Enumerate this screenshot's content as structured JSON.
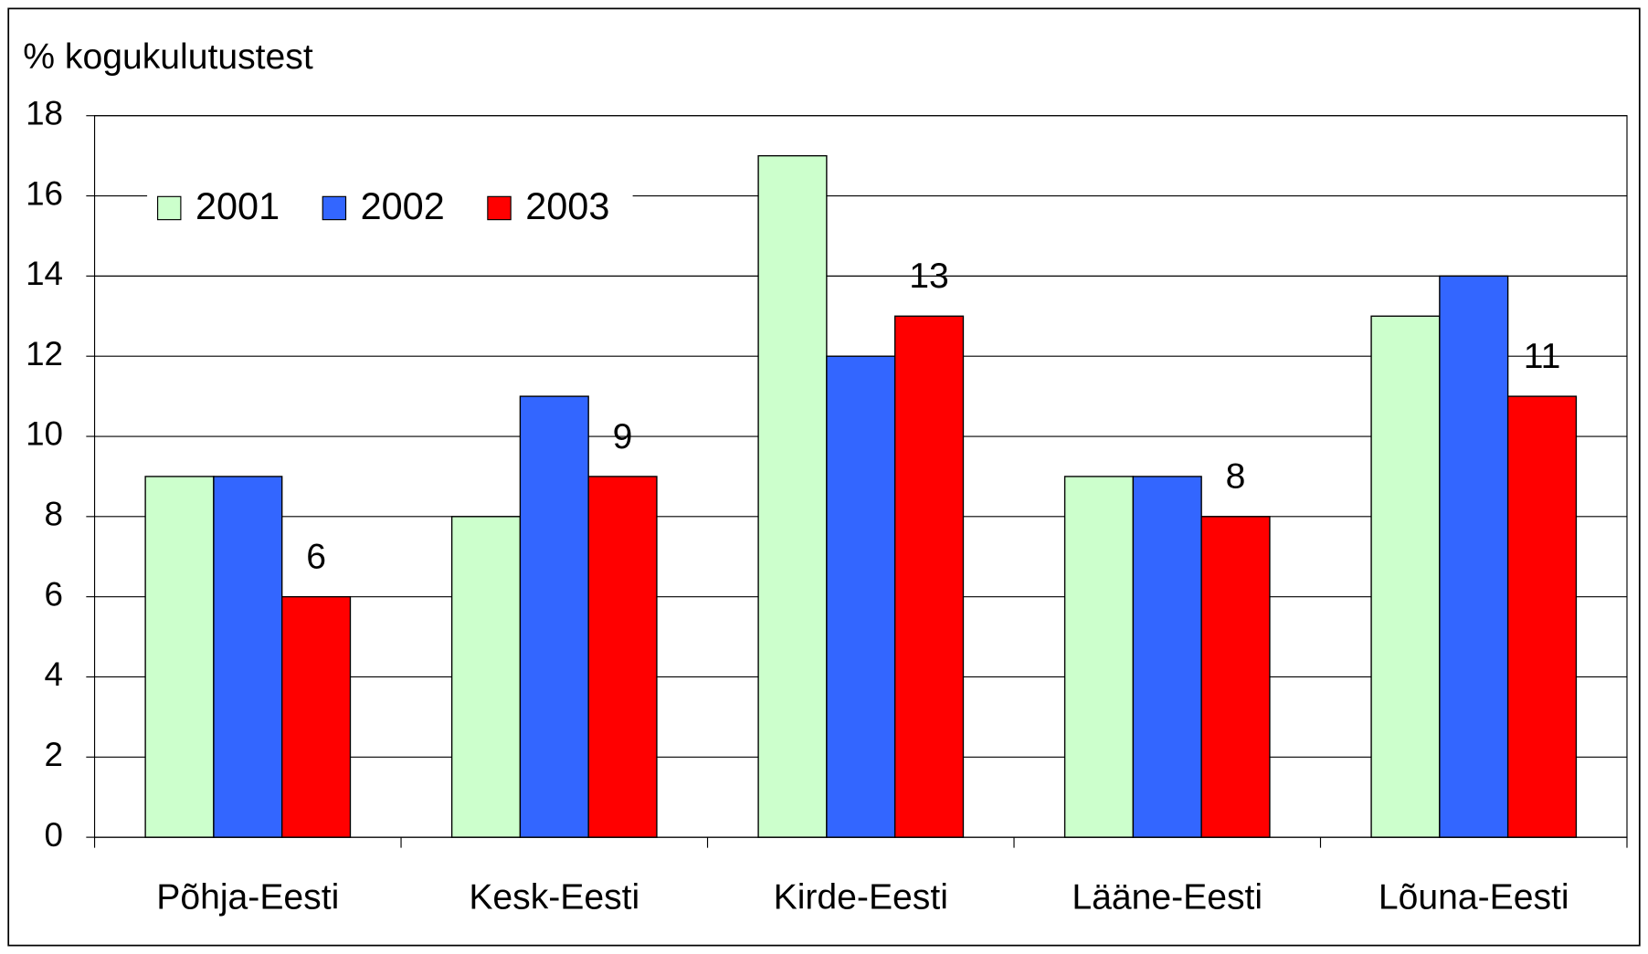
{
  "chart_data": {
    "type": "bar",
    "y_axis_label": "% kogukulutustest",
    "categories": [
      "Põhja-Eesti",
      "Kesk-Eesti",
      "Kirde-Eesti",
      "Lääne-Eesti",
      "Lõuna-Eesti"
    ],
    "series": [
      {
        "name": "2001",
        "color": "#ccffcc",
        "values": [
          9,
          8,
          17,
          9,
          13
        ]
      },
      {
        "name": "2002",
        "color": "#3366ff",
        "values": [
          9,
          11,
          12,
          9,
          14
        ]
      },
      {
        "name": "2003",
        "color": "#ff0000",
        "values": [
          6,
          9,
          13,
          8,
          11
        ],
        "show_labels": true
      }
    ],
    "ylim": [
      0,
      18
    ],
    "yticks": [
      0,
      2,
      4,
      6,
      8,
      10,
      12,
      14,
      16,
      18
    ],
    "grid": true,
    "legend": "top-left"
  }
}
